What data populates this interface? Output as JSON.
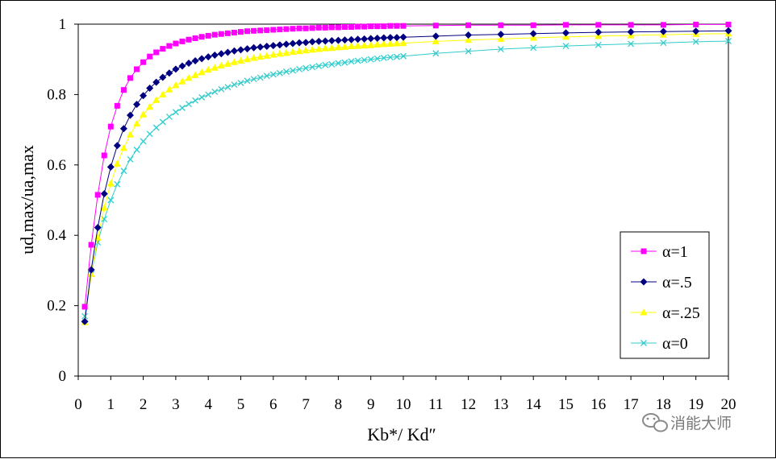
{
  "chart_data": {
    "type": "line",
    "title": "",
    "xlabel": "Kb*/ Kd″",
    "ylabel": "ud,max/ua,max",
    "xlim": [
      0,
      20
    ],
    "ylim": [
      0,
      1
    ],
    "x_ticks": [
      "0",
      "1",
      "2",
      "3",
      "4",
      "5",
      "6",
      "7",
      "8",
      "9",
      "10",
      "11",
      "12",
      "13",
      "14",
      "15",
      "16",
      "17",
      "18",
      "19",
      "20"
    ],
    "y_ticks": [
      "0",
      "0.2",
      "0.4",
      "0.6",
      "0.8",
      "1"
    ],
    "legend_position": "right",
    "series": [
      {
        "name": "α=1",
        "color": "#ff00ff",
        "marker": "square",
        "x": [
          0.2,
          0.4,
          0.6,
          0.8,
          1.0,
          1.2,
          1.4,
          1.6,
          1.8,
          2.0,
          2.2,
          2.4,
          2.6,
          2.8,
          3.0,
          3.2,
          3.4,
          3.6,
          3.8,
          4.0,
          4.2,
          4.4,
          4.6,
          4.8,
          5.0,
          5.2,
          5.4,
          5.6,
          5.8,
          6.0,
          6.2,
          6.4,
          6.6,
          6.8,
          7.0,
          7.2,
          7.4,
          7.6,
          7.8,
          8.0,
          8.2,
          8.4,
          8.6,
          8.8,
          9.0,
          9.2,
          9.4,
          9.6,
          9.8,
          10.0,
          11,
          12,
          13,
          14,
          15,
          16,
          17,
          18,
          19,
          20
        ],
        "y": [
          0.197,
          0.373,
          0.515,
          0.627,
          0.709,
          0.768,
          0.813,
          0.847,
          0.872,
          0.892,
          0.908,
          0.92,
          0.93,
          0.938,
          0.945,
          0.951,
          0.956,
          0.96,
          0.964,
          0.967,
          0.97,
          0.972,
          0.974,
          0.976,
          0.978,
          0.98,
          0.981,
          0.982,
          0.983,
          0.984,
          0.985,
          0.986,
          0.987,
          0.988,
          0.988,
          0.989,
          0.99,
          0.99,
          0.991,
          0.991,
          0.992,
          0.992,
          0.993,
          0.993,
          0.994,
          0.994,
          0.994,
          0.995,
          0.995,
          0.995,
          0.996,
          0.997,
          0.997,
          0.997,
          0.998,
          0.998,
          0.998,
          0.998,
          0.999,
          0.999
        ]
      },
      {
        "name": "α=.5",
        "color": "#000080",
        "marker": "diamond",
        "x": [
          0.2,
          0.4,
          0.6,
          0.8,
          1.0,
          1.2,
          1.4,
          1.6,
          1.8,
          2.0,
          2.2,
          2.4,
          2.6,
          2.8,
          3.0,
          3.2,
          3.4,
          3.6,
          3.8,
          4.0,
          4.2,
          4.4,
          4.6,
          4.8,
          5.0,
          5.2,
          5.4,
          5.6,
          5.8,
          6.0,
          6.2,
          6.4,
          6.6,
          6.8,
          7.0,
          7.2,
          7.4,
          7.6,
          7.8,
          8.0,
          8.2,
          8.4,
          8.6,
          8.8,
          9.0,
          9.2,
          9.4,
          9.6,
          9.8,
          10.0,
          11,
          12,
          13,
          14,
          15,
          16,
          17,
          18,
          19,
          20
        ],
        "y": [
          0.155,
          0.302,
          0.422,
          0.518,
          0.594,
          0.655,
          0.703,
          0.741,
          0.772,
          0.797,
          0.818,
          0.835,
          0.849,
          0.861,
          0.872,
          0.881,
          0.889,
          0.896,
          0.902,
          0.907,
          0.912,
          0.916,
          0.92,
          0.924,
          0.927,
          0.93,
          0.933,
          0.935,
          0.937,
          0.939,
          0.941,
          0.943,
          0.945,
          0.947,
          0.948,
          0.95,
          0.951,
          0.952,
          0.953,
          0.954,
          0.955,
          0.956,
          0.957,
          0.958,
          0.959,
          0.96,
          0.961,
          0.962,
          0.962,
          0.963,
          0.966,
          0.969,
          0.971,
          0.973,
          0.975,
          0.977,
          0.978,
          0.979,
          0.98,
          0.981
        ]
      },
      {
        "name": "α=.25",
        "color": "#ffff00",
        "marker": "triangle",
        "x": [
          0.2,
          0.4,
          0.6,
          0.8,
          1.0,
          1.2,
          1.4,
          1.6,
          1.8,
          2.0,
          2.2,
          2.4,
          2.6,
          2.8,
          3.0,
          3.2,
          3.4,
          3.6,
          3.8,
          4.0,
          4.2,
          4.4,
          4.6,
          4.8,
          5.0,
          5.2,
          5.4,
          5.6,
          5.8,
          6.0,
          6.2,
          6.4,
          6.6,
          6.8,
          7.0,
          7.2,
          7.4,
          7.6,
          7.8,
          8.0,
          8.2,
          8.4,
          8.6,
          8.8,
          9.0,
          9.2,
          9.4,
          9.6,
          9.8,
          10.0,
          11,
          12,
          13,
          14,
          15,
          16,
          17,
          18,
          19,
          20
        ],
        "y": [
          0.153,
          0.29,
          0.393,
          0.478,
          0.547,
          0.603,
          0.648,
          0.686,
          0.717,
          0.743,
          0.765,
          0.784,
          0.8,
          0.814,
          0.826,
          0.837,
          0.847,
          0.855,
          0.863,
          0.87,
          0.876,
          0.882,
          0.887,
          0.892,
          0.896,
          0.9,
          0.904,
          0.907,
          0.91,
          0.913,
          0.916,
          0.918,
          0.921,
          0.923,
          0.925,
          0.927,
          0.929,
          0.931,
          0.932,
          0.934,
          0.935,
          0.937,
          0.938,
          0.939,
          0.94,
          0.942,
          0.943,
          0.944,
          0.945,
          0.946,
          0.951,
          0.955,
          0.958,
          0.961,
          0.964,
          0.966,
          0.968,
          0.97,
          0.972,
          0.973
        ]
      },
      {
        "name": "α=0",
        "color": "#33cccc",
        "marker": "x",
        "x": [
          0.2,
          0.4,
          0.6,
          0.8,
          1.0,
          1.2,
          1.4,
          1.6,
          1.8,
          2.0,
          2.2,
          2.4,
          2.6,
          2.8,
          3.0,
          3.2,
          3.4,
          3.6,
          3.8,
          4.0,
          4.2,
          4.4,
          4.6,
          4.8,
          5.0,
          5.2,
          5.4,
          5.6,
          5.8,
          6.0,
          6.2,
          6.4,
          6.6,
          6.8,
          7.0,
          7.2,
          7.4,
          7.6,
          7.8,
          8.0,
          8.2,
          8.4,
          8.6,
          8.8,
          9.0,
          9.2,
          9.4,
          9.6,
          9.8,
          10.0,
          11,
          12,
          13,
          14,
          15,
          16,
          17,
          18,
          19,
          20
        ],
        "y": [
          0.17,
          0.29,
          0.38,
          0.446,
          0.5,
          0.545,
          0.583,
          0.616,
          0.643,
          0.667,
          0.688,
          0.706,
          0.722,
          0.737,
          0.75,
          0.762,
          0.773,
          0.783,
          0.792,
          0.8,
          0.808,
          0.815,
          0.821,
          0.828,
          0.833,
          0.839,
          0.844,
          0.848,
          0.853,
          0.857,
          0.861,
          0.865,
          0.868,
          0.872,
          0.875,
          0.878,
          0.881,
          0.884,
          0.886,
          0.889,
          0.891,
          0.894,
          0.896,
          0.898,
          0.9,
          0.902,
          0.904,
          0.906,
          0.907,
          0.909,
          0.917,
          0.923,
          0.929,
          0.933,
          0.938,
          0.941,
          0.944,
          0.947,
          0.95,
          0.952
        ]
      }
    ]
  },
  "watermark": {
    "text": "消能大师",
    "icon": "wechat-icon"
  }
}
